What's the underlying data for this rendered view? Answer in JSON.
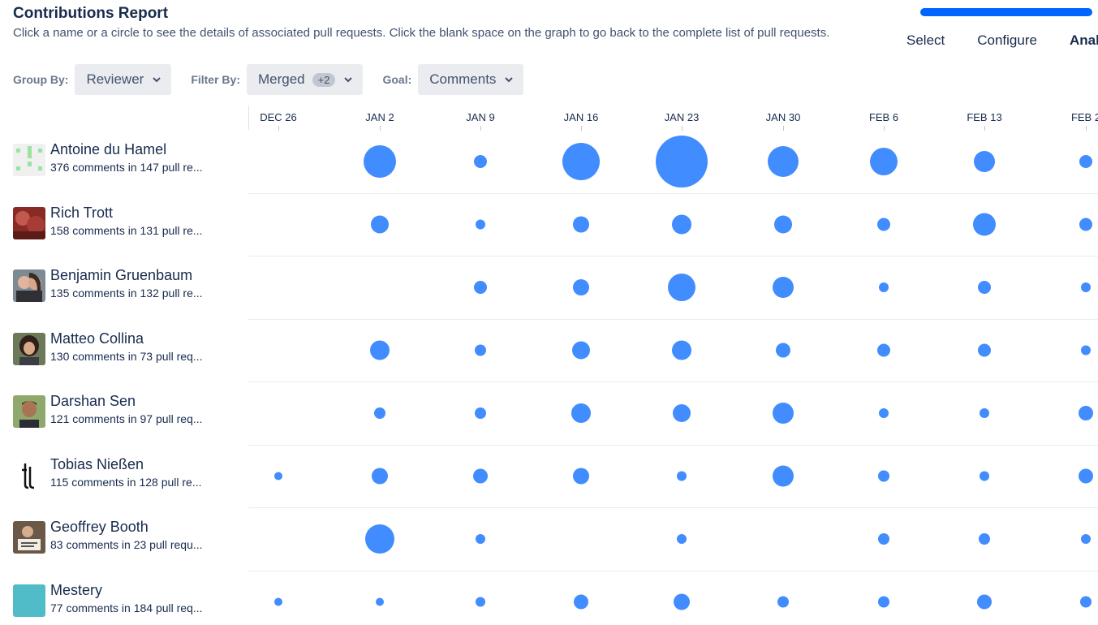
{
  "header": {
    "title": "Contributions Report",
    "subtitle": "Click a name or a circle to see the details of associated pull requests. Click the blank space on the graph to go back to the complete list of pull requests.",
    "tabs": [
      "Select",
      "Configure",
      "Analy"
    ],
    "active_tab": 2
  },
  "controls": {
    "group_label": "Group By:",
    "group_value": "Reviewer",
    "filter_label": "Filter By:",
    "filter_value": "Merged",
    "filter_badge": "+2",
    "goal_label": "Goal:",
    "goal_value": "Comments"
  },
  "colors": {
    "bubble": "#418cff",
    "progress": "#0065ff"
  },
  "axis": {
    "labels": [
      "DEC 26",
      "JAN 2",
      "JAN 9",
      "JAN 16",
      "JAN 23",
      "JAN 30",
      "FEB 6",
      "FEB 13",
      "FEB 2"
    ]
  },
  "people": [
    {
      "name": "Antoine du Hamel",
      "stats": "376 comments in 147 pull re...",
      "avatar": "identicon-green",
      "bubbles": [
        0,
        20,
        8,
        23,
        32,
        19,
        17,
        13,
        8
      ]
    },
    {
      "name": "Rich Trott",
      "stats": "158 comments in 131 pull re...",
      "avatar": "photo-red",
      "bubbles": [
        0,
        11,
        6,
        10,
        12,
        11,
        8,
        14,
        8
      ]
    },
    {
      "name": "Benjamin Gruenbaum",
      "stats": "135 comments in 132 pull re...",
      "avatar": "photo-couple",
      "bubbles": [
        0,
        0,
        8,
        10,
        17,
        13,
        6,
        8,
        6
      ]
    },
    {
      "name": "Matteo Collina",
      "stats": "130 comments in 73 pull req...",
      "avatar": "photo-man-hair",
      "bubbles": [
        0,
        12,
        7,
        11,
        12,
        9,
        8,
        8,
        6
      ]
    },
    {
      "name": "Darshan Sen",
      "stats": "121 comments in 97 pull req...",
      "avatar": "photo-man-green",
      "bubbles": [
        0,
        7,
        7,
        12,
        11,
        13,
        6,
        6,
        9
      ]
    },
    {
      "name": "Tobias Nießen",
      "stats": "115 comments in 128 pull re...",
      "avatar": "logo-tn",
      "bubbles": [
        5,
        10,
        9,
        10,
        6,
        13,
        7,
        6,
        9
      ]
    },
    {
      "name": "Geoffrey Booth",
      "stats": "83 comments in 23 pull requ...",
      "avatar": "photo-man-sign",
      "bubbles": [
        0,
        18,
        6,
        0,
        6,
        0,
        7,
        7,
        6
      ]
    },
    {
      "name": "Mestery",
      "stats": "77 comments in 184 pull req...",
      "avatar": "teal-square",
      "bubbles": [
        5,
        5,
        6,
        9,
        10,
        7,
        7,
        9,
        7
      ]
    }
  ]
}
